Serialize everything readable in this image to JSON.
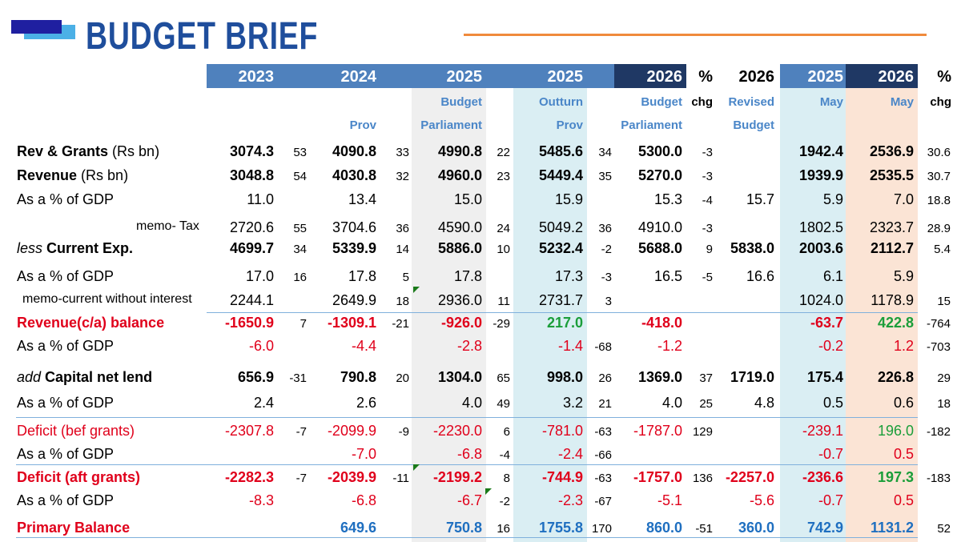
{
  "title": "BUDGET BRIEF",
  "colors": {
    "title": "#1f4e9c",
    "header_band": "#4f81bd",
    "header_dark": "#1f3864",
    "negative": "#e0001b",
    "positive": "#1b9e3a",
    "blue": "#1f6fc0",
    "outturn_shade": "#daeef3",
    "may26_shade": "#fbe4d5",
    "parl_shade": "#efefef",
    "accent_line": "#f08a3c"
  },
  "columns": [
    {
      "id": "y2023",
      "year": "2023",
      "sub1": "",
      "sub2": ""
    },
    {
      "id": "y2024",
      "year": "2024",
      "sub1": "",
      "sub2": "Prov"
    },
    {
      "id": "y2025b",
      "year": "2025",
      "sub1": "Budget",
      "sub2": "Parliament"
    },
    {
      "id": "y2025o",
      "year": "2025",
      "sub1": "Outturn",
      "sub2": "Prov"
    },
    {
      "id": "y2026b",
      "year": "2026",
      "sub1": "Budget",
      "sub2": "Parliament"
    },
    {
      "id": "pct1",
      "year": "%",
      "sub1": "chg",
      "sub2": ""
    },
    {
      "id": "y2026r",
      "year": "2026",
      "sub1": "Revised",
      "sub2": "Budget"
    },
    {
      "id": "m2025",
      "year": "2025",
      "sub1": "May",
      "sub2": ""
    },
    {
      "id": "m2026",
      "year": "2026",
      "sub1": "May",
      "sub2": ""
    },
    {
      "id": "pct2",
      "year": "%",
      "sub1": "chg",
      "sub2": ""
    }
  ],
  "rows": [
    {
      "label": "Rev & Grants",
      "unit": " (Rs bn)",
      "style": "bold",
      "v": [
        "3074.3",
        "53",
        "4090.8",
        "33",
        "4990.8",
        "22",
        "5485.6",
        "34",
        "5300.0",
        "-3",
        "",
        "1942.4",
        "2536.9",
        "30.6"
      ]
    },
    {
      "label": "Revenue",
      "unit": " (Rs bn)",
      "style": "bold",
      "v": [
        "3048.8",
        "54",
        "4030.8",
        "32",
        "4960.0",
        "23",
        "5449.4",
        "35",
        "5270.0",
        "-3",
        "",
        "1939.9",
        "2535.5",
        "30.7"
      ]
    },
    {
      "label": "As a % of GDP",
      "unit": "",
      "style": "normal",
      "v": [
        "11.0",
        "",
        "13.4",
        "",
        "15.0",
        "",
        "15.9",
        "",
        "15.3",
        "-4",
        "15.7",
        "5.9",
        "7.0",
        "18.8"
      ]
    },
    {
      "label": "memo- Tax",
      "unit": "",
      "style": "memo",
      "v": [
        "2720.6",
        "55",
        "3704.6",
        "36",
        "4590.0",
        "24",
        "5049.2",
        "36",
        "4910.0",
        "-3",
        "",
        "1802.5",
        "2323.7",
        "28.9"
      ]
    },
    {
      "prefix": "less",
      "label": "Current Exp.",
      "unit": "",
      "style": "bold",
      "v": [
        "4699.7",
        "34",
        "5339.9",
        "14",
        "5886.0",
        "10",
        "5232.4",
        "-2",
        "5688.0",
        "9",
        "5838.0",
        "2003.6",
        "2112.7",
        "5.4"
      ]
    },
    {
      "label": "As a % of GDP",
      "unit": "",
      "style": "normal",
      "v": [
        "17.0",
        "16",
        "17.8",
        "5",
        "17.8",
        "",
        "17.3",
        "-3",
        "16.5",
        "-5",
        "16.6",
        "6.1",
        "5.9",
        ""
      ]
    },
    {
      "label": "memo-current without interest",
      "unit": "",
      "style": "memo2",
      "v": [
        "2244.1",
        "",
        "2649.9",
        "18",
        "2936.0",
        "11",
        "2731.7",
        "3",
        "",
        "",
        "",
        "1024.0",
        "1178.9",
        "15"
      ]
    },
    {
      "label": "Revenue(c/a) balance",
      "unit": "",
      "style": "boldred",
      "v": [
        "-1650.9",
        "7",
        "-1309.1",
        "-21",
        "-926.0",
        "-29",
        "217.0",
        "",
        "-418.0",
        "",
        "",
        "-63.7",
        "422.8",
        "-764"
      ]
    },
    {
      "label": "As a % of GDP",
      "unit": "",
      "style": "normal",
      "v": [
        "-6.0",
        "",
        "-4.4",
        "",
        "-2.8",
        "",
        "-1.4",
        "-68",
        "-1.2",
        "",
        "",
        "-0.2",
        "1.2",
        "-703"
      ]
    },
    {
      "prefix": "add",
      "label": "Capital net lend",
      "unit": "",
      "style": "bold",
      "v": [
        "656.9",
        "-31",
        "790.8",
        "20",
        "1304.0",
        "65",
        "998.0",
        "26",
        "1369.0",
        "37",
        "1719.0",
        "175.4",
        "226.8",
        "29"
      ]
    },
    {
      "label": "As a % of GDP",
      "unit": "",
      "style": "normal",
      "v": [
        "2.4",
        "",
        "2.6",
        "",
        "4.0",
        "49",
        "3.2",
        "21",
        "4.0",
        "25",
        "4.8",
        "0.5",
        "0.6",
        "18"
      ]
    },
    {
      "label": "Deficit (bef grants)",
      "unit": "",
      "style": "red",
      "v": [
        "-2307.8",
        "-7",
        "-2099.9",
        "-9",
        "-2230.0",
        "6",
        "-781.0",
        "-63",
        "-1787.0",
        "129",
        "",
        "-239.1",
        "196.0",
        "-182"
      ]
    },
    {
      "label": "As a % of GDP",
      "unit": "",
      "style": "normal",
      "v": [
        "",
        "",
        "-7.0",
        "",
        "-6.8",
        "-4",
        "-2.4",
        "-66",
        "",
        "",
        "",
        "-0.7",
        "0.5",
        ""
      ]
    },
    {
      "label": "Deficit (aft grants)",
      "unit": "",
      "style": "boldred",
      "v": [
        "-2282.3",
        "-7",
        "-2039.9",
        "-11",
        "-2199.2",
        "8",
        "-744.9",
        "-63",
        "-1757.0",
        "136",
        "-2257.0",
        "-236.6",
        "197.3",
        "-183"
      ]
    },
    {
      "label": "As a % of GDP",
      "unit": "",
      "style": "normal",
      "v": [
        "-8.3",
        "",
        "-6.8",
        "",
        "-6.7",
        "-2",
        "-2.3",
        "-67",
        "-5.1",
        "",
        "-5.6",
        "-0.7",
        "0.5",
        ""
      ]
    },
    {
      "label": "Primary Balance",
      "unit": "",
      "style": "boldred",
      "v": [
        "",
        "",
        "649.6",
        "",
        "750.8",
        "16",
        "1755.8",
        "170",
        "860.0",
        "-51",
        "360.0",
        "742.9",
        "1131.2",
        "52"
      ]
    }
  ]
}
